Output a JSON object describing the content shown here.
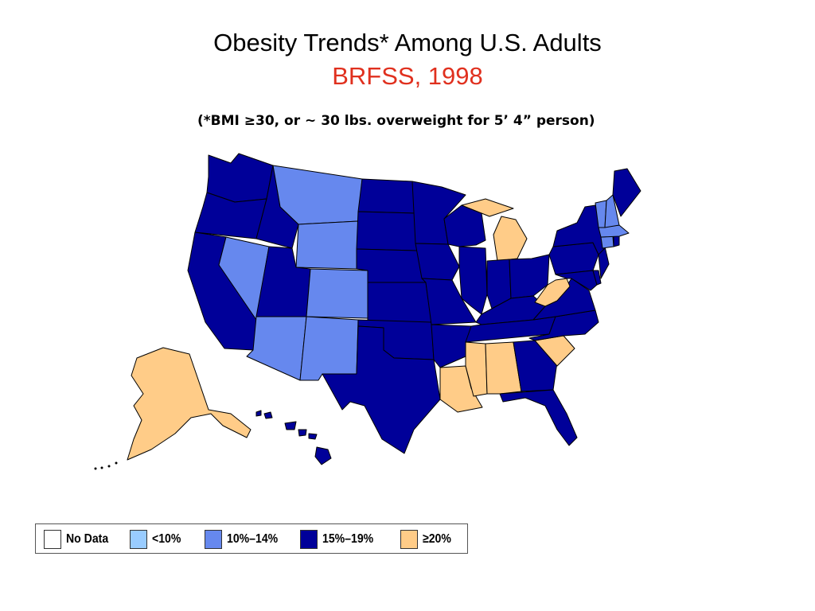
{
  "header": {
    "title": "Obesity Trends* Among U.S. Adults",
    "subtitle": "BRFSS, 1998",
    "note": "(*BMI ≥30, or ~ 30 lbs. overweight for 5’ 4” person)"
  },
  "colors": {
    "title": "#000000",
    "subtitle": "#e0301e",
    "no_data": "#ffffff",
    "lt10": "#99ccff",
    "r10_14": "#6688ee",
    "r15_19": "#000099",
    "ge20": "#ffcc88",
    "border": "#000000"
  },
  "legend": [
    {
      "key": "no_data",
      "label": "No Data"
    },
    {
      "key": "lt10",
      "label": "<10%"
    },
    {
      "key": "r10_14",
      "label": "10%–14%"
    },
    {
      "key": "r15_19",
      "label": "15%–19%"
    },
    {
      "key": "ge20",
      "label": "≥20%"
    }
  ],
  "states": {
    "WA": "r15_19",
    "OR": "r15_19",
    "CA": "r15_19",
    "ID": "r15_19",
    "NV": "r10_14",
    "MT": "r10_14",
    "WY": "r10_14",
    "UT": "r15_19",
    "CO": "r10_14",
    "AZ": "r10_14",
    "NM": "r10_14",
    "ND": "r15_19",
    "SD": "r15_19",
    "NE": "r15_19",
    "KS": "r15_19",
    "OK": "r15_19",
    "TX": "r15_19",
    "MN": "r15_19",
    "IA": "r15_19",
    "MO": "r15_19",
    "AR": "r15_19",
    "LA": "ge20",
    "WI": "r15_19",
    "MI": "ge20",
    "IL": "r15_19",
    "IN": "r15_19",
    "OH": "r15_19",
    "KY": "r15_19",
    "TN": "r15_19",
    "MS": "ge20",
    "AL": "ge20",
    "GA": "r15_19",
    "FL": "r15_19",
    "SC": "ge20",
    "NC": "r15_19",
    "VA": "r15_19",
    "WV": "ge20",
    "PA": "r15_19",
    "NY": "r15_19",
    "NJ": "r15_19",
    "DE": "r15_19",
    "MD": "r15_19",
    "CT": "r10_14",
    "RI": "r15_19",
    "MA": "r10_14",
    "VT": "r10_14",
    "NH": "r10_14",
    "ME": "r15_19",
    "AK": "ge20",
    "HI": "r15_19"
  }
}
